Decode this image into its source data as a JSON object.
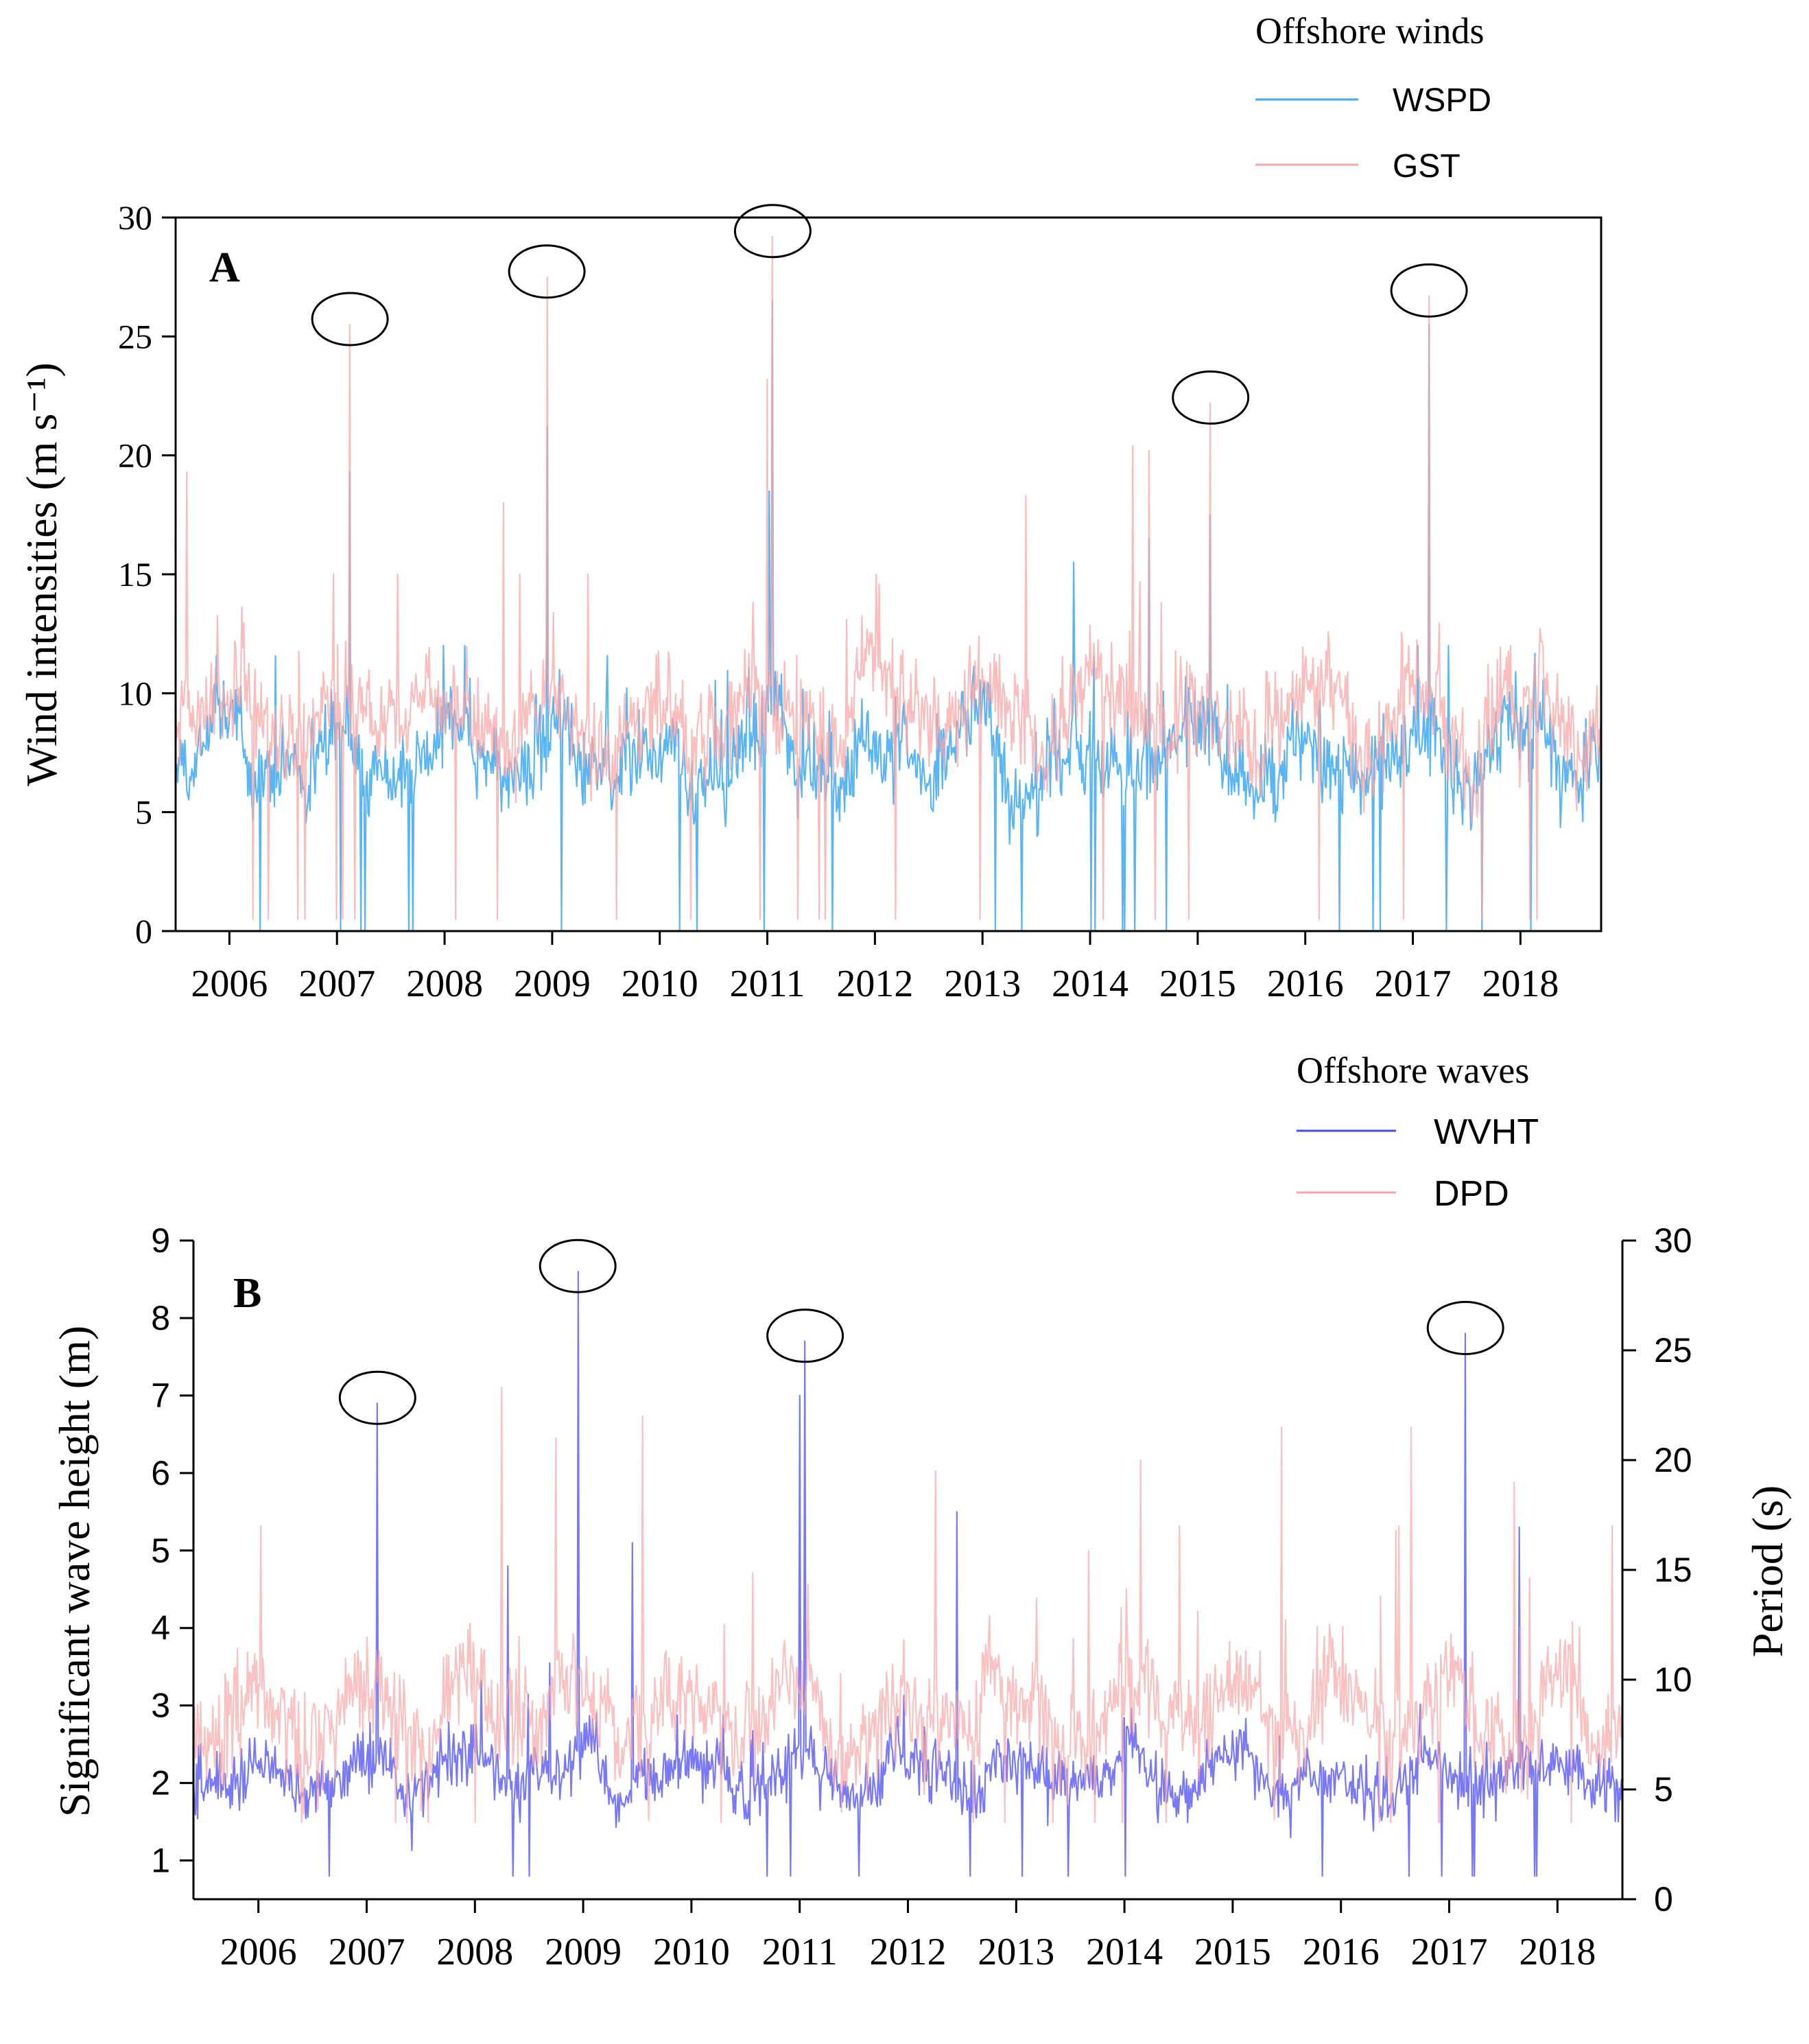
{
  "colors": {
    "wspd": "#3ea8f0",
    "gst": "#f7a7a7",
    "wvht": "#4c4cf2",
    "dpd": "#f7a7a7",
    "axis": "#000000"
  },
  "chart_data": [
    {
      "type": "line",
      "panel_label": "A",
      "legend_title": "Offshore winds",
      "legend_position": "top-right",
      "ylabel": "Wind intensities (m s⁻¹)",
      "ylim": [
        0,
        30
      ],
      "yticks": [
        0,
        5,
        10,
        15,
        20,
        25,
        30
      ],
      "xlim": [
        2005.5,
        2018.75
      ],
      "xticks": [
        "2006",
        "2007",
        "2008",
        "2009",
        "2010",
        "2011",
        "2012",
        "2013",
        "2014",
        "2015",
        "2016",
        "2017",
        "2018"
      ],
      "xtick_positions": [
        2006,
        2007,
        2008,
        2009,
        2010,
        2011,
        2012,
        2013,
        2014,
        2015,
        2016,
        2017,
        2018
      ],
      "grid": false,
      "series": [
        {
          "name": "WSPD",
          "color_key": "wspd",
          "baseline": 7.5,
          "spread": 2.6,
          "min": 0,
          "max_typical": 12,
          "peaks": [
            [
              2007.12,
              19.3
            ],
            [
              2008.95,
              21.2
            ],
            [
              2011.05,
              26.5
            ],
            [
              2011.02,
              18.5
            ],
            [
              2013.85,
              15.5
            ],
            [
              2015.12,
              17.5
            ],
            [
              2017.15,
              25.5
            ],
            [
              2014.55,
              16.5
            ]
          ]
        },
        {
          "name": "GST",
          "color_key": "gst",
          "baseline": 9.2,
          "spread": 3.0,
          "min": 0.5,
          "max_typical": 15,
          "peaks": [
            [
              2007.12,
              25.5
            ],
            [
              2008.95,
              27.5
            ],
            [
              2011.05,
              29.2
            ],
            [
              2011.0,
              23.2
            ],
            [
              2015.12,
              22.2
            ],
            [
              2017.15,
              26.7
            ],
            [
              2014.4,
              20.4
            ],
            [
              2014.55,
              20.2
            ],
            [
              2005.6,
              19.3
            ],
            [
              2013.4,
              18.3
            ],
            [
              2008.55,
              18.0
            ]
          ]
        }
      ],
      "highlighted_peaks": [
        {
          "x": 2007.12,
          "y": 25.5
        },
        {
          "x": 2008.95,
          "y": 27.5
        },
        {
          "x": 2011.05,
          "y": 29.2
        },
        {
          "x": 2015.12,
          "y": 22.2
        },
        {
          "x": 2017.15,
          "y": 26.7
        }
      ]
    },
    {
      "type": "line",
      "panel_label": "B",
      "legend_title": "Offshore waves",
      "legend_position": "top-right",
      "ylabel": "Significant wave height (m)",
      "ylabel_right": "Period (s)",
      "ylim": [
        0.5,
        9
      ],
      "yticks": [
        1,
        2,
        3,
        4,
        5,
        6,
        7,
        8,
        9
      ],
      "ylim_right": [
        0,
        30
      ],
      "yticks_right": [
        0,
        5,
        10,
        15,
        20,
        25,
        30
      ],
      "xlim": [
        2005.4,
        2018.6
      ],
      "xticks": [
        "2006",
        "2007",
        "2008",
        "2009",
        "2010",
        "2011",
        "2012",
        "2013",
        "2014",
        "2015",
        "2016",
        "2017",
        "2018"
      ],
      "xtick_positions": [
        2006,
        2007,
        2008,
        2009,
        2010,
        2011,
        2012,
        2013,
        2014,
        2015,
        2016,
        2017,
        2018
      ],
      "grid": false,
      "series": [
        {
          "name": "WVHT",
          "color_key": "wvht",
          "axis": "left",
          "baseline": 2.1,
          "spread": 0.55,
          "min": 0.8,
          "max_typical": 4.5,
          "peaks": [
            [
              2007.1,
              6.9
            ],
            [
              2008.95,
              8.6
            ],
            [
              2011.05,
              7.7
            ],
            [
              2011.0,
              7.0
            ],
            [
              2017.15,
              7.8
            ],
            [
              2008.3,
              4.8
            ],
            [
              2012.45,
              5.5
            ],
            [
              2017.65,
              5.3
            ],
            [
              2009.45,
              5.1
            ]
          ]
        },
        {
          "name": "DPD",
          "color_key": "dpd",
          "axis": "right",
          "baseline": 8.5,
          "spread": 3.2,
          "min": 3.5,
          "max_typical": 17,
          "peaks": [
            [
              2008.25,
              23.3
            ],
            [
              2009.55,
              22.0
            ],
            [
              2008.75,
              21.0
            ],
            [
              2015.45,
              21.5
            ],
            [
              2016.65,
              21.5
            ],
            [
              2014.15,
              20.0
            ],
            [
              2012.25,
              19.5
            ],
            [
              2017.6,
              19.0
            ]
          ]
        }
      ],
      "highlighted_peaks": [
        {
          "x": 2007.1,
          "y": 6.9
        },
        {
          "x": 2008.95,
          "y": 8.6
        },
        {
          "x": 2011.05,
          "y": 7.7
        },
        {
          "x": 2017.15,
          "y": 7.8
        }
      ]
    }
  ]
}
